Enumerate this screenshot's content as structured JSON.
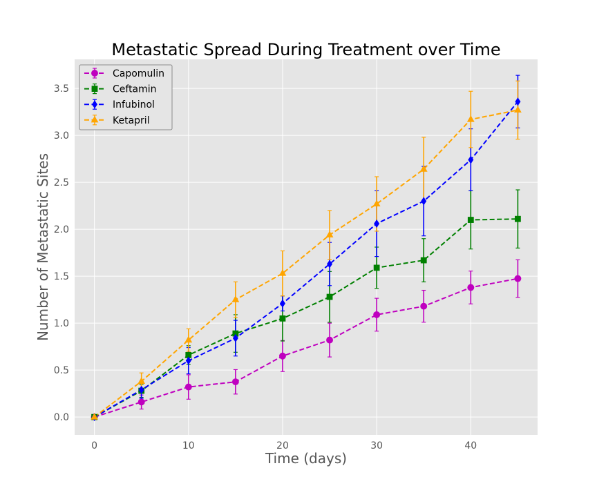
{
  "chart_data": {
    "type": "line",
    "title": "Metastatic Spread During Treatment over Time",
    "xlabel": "Time (days)",
    "ylabel": "Number of Metastatic Sites",
    "xlim": [
      -2.1,
      47.1
    ],
    "ylim": [
      -0.19,
      3.81
    ],
    "xticks": [
      0,
      10,
      20,
      30,
      40
    ],
    "xtick_labels": [
      "0",
      "10",
      "20",
      "30",
      "40"
    ],
    "yticks": [
      0.0,
      0.5,
      1.0,
      1.5,
      2.0,
      2.5,
      3.0,
      3.5
    ],
    "ytick_labels": [
      "0.0",
      "0.5",
      "1.0",
      "1.5",
      "2.0",
      "2.5",
      "3.0",
      "3.5"
    ],
    "grid": true,
    "legend_position": "top-left",
    "x": [
      0,
      5,
      10,
      15,
      20,
      25,
      30,
      35,
      40,
      45
    ],
    "series": [
      {
        "name": "Capomulin",
        "color": "#bf00bf",
        "marker": "circle",
        "values": [
          0.0,
          0.16,
          0.32,
          0.375,
          0.65,
          0.82,
          1.09,
          1.18,
          1.38,
          1.475
        ],
        "errors": [
          0.0,
          0.075,
          0.13,
          0.13,
          0.165,
          0.18,
          0.175,
          0.17,
          0.175,
          0.2
        ]
      },
      {
        "name": "Ceftamin",
        "color": "#008000",
        "marker": "square",
        "values": [
          0.0,
          0.28,
          0.66,
          0.89,
          1.05,
          1.28,
          1.59,
          1.67,
          2.1,
          2.11
        ],
        "errors": [
          0.0,
          0.07,
          0.1,
          0.2,
          0.24,
          0.27,
          0.22,
          0.23,
          0.31,
          0.31
        ]
      },
      {
        "name": "Infubinol",
        "color": "#0000ff",
        "marker": "diamond",
        "values": [
          0.0,
          0.29,
          0.6,
          0.84,
          1.21,
          1.63,
          2.06,
          2.3,
          2.74,
          3.36
        ],
        "errors": [
          0.0,
          0.09,
          0.14,
          0.19,
          0.08,
          0.23,
          0.35,
          0.37,
          0.33,
          0.28
        ]
      },
      {
        "name": "Ketapril",
        "color": "#ffa500",
        "marker": "triangle",
        "values": [
          0.0,
          0.38,
          0.82,
          1.25,
          1.53,
          1.94,
          2.27,
          2.64,
          3.17,
          3.27
        ],
        "errors": [
          0.0,
          0.09,
          0.12,
          0.19,
          0.24,
          0.26,
          0.29,
          0.34,
          0.3,
          0.31
        ]
      }
    ]
  }
}
